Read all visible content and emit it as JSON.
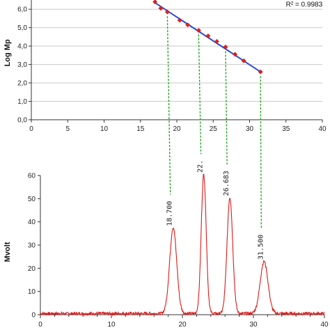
{
  "chart_data": [
    {
      "type": "scatter",
      "xlabel": "",
      "ylabel": "Log Mp",
      "xlim": [
        0,
        40
      ],
      "ylim": [
        0,
        6.5
      ],
      "x_ticks": [
        "0",
        "5",
        "10",
        "15",
        "20",
        "25",
        "30",
        "35",
        "40"
      ],
      "y_ticks": [
        "0,0",
        "1,0",
        "2,0",
        "3,0",
        "4,0",
        "5,0",
        "6,0"
      ],
      "grid": true,
      "annotation": "R² = 0.9983",
      "points": [
        {
          "x": 17.0,
          "y": 6.4
        },
        {
          "x": 17.8,
          "y": 6.05
        },
        {
          "x": 18.7,
          "y": 5.85
        },
        {
          "x": 20.4,
          "y": 5.4
        },
        {
          "x": 21.5,
          "y": 5.15
        },
        {
          "x": 23.0,
          "y": 4.85
        },
        {
          "x": 24.3,
          "y": 4.55
        },
        {
          "x": 25.5,
          "y": 4.25
        },
        {
          "x": 26.7,
          "y": 3.95
        },
        {
          "x": 28.0,
          "y": 3.55
        },
        {
          "x": 29.2,
          "y": 3.2
        },
        {
          "x": 31.5,
          "y": 2.6
        }
      ],
      "fit_line": {
        "x": [
          17.0,
          31.5
        ],
        "y": [
          6.35,
          2.6
        ]
      }
    },
    {
      "type": "line",
      "xlabel": "",
      "ylabel": "Mvolt",
      "xlim": [
        0,
        40
      ],
      "ylim": [
        0,
        60
      ],
      "x_ticks": [
        "0",
        "10",
        "20",
        "30",
        "40"
      ],
      "y_ticks": [
        "0",
        "10",
        "20",
        "30",
        "40",
        "50",
        "60"
      ],
      "grid": false,
      "peaks": [
        {
          "time": 18.7,
          "height": 37,
          "width": 0.5,
          "label": "18.700"
        },
        {
          "time": 23.0,
          "height": 60,
          "width": 0.35,
          "label": "22."
        },
        {
          "time": 26.683,
          "height": 50,
          "width": 0.4,
          "label": "26.683"
        },
        {
          "time": 31.5,
          "height": 22.5,
          "width": 0.55,
          "label": "31.500"
        }
      ],
      "baseline": 0.5
    }
  ]
}
